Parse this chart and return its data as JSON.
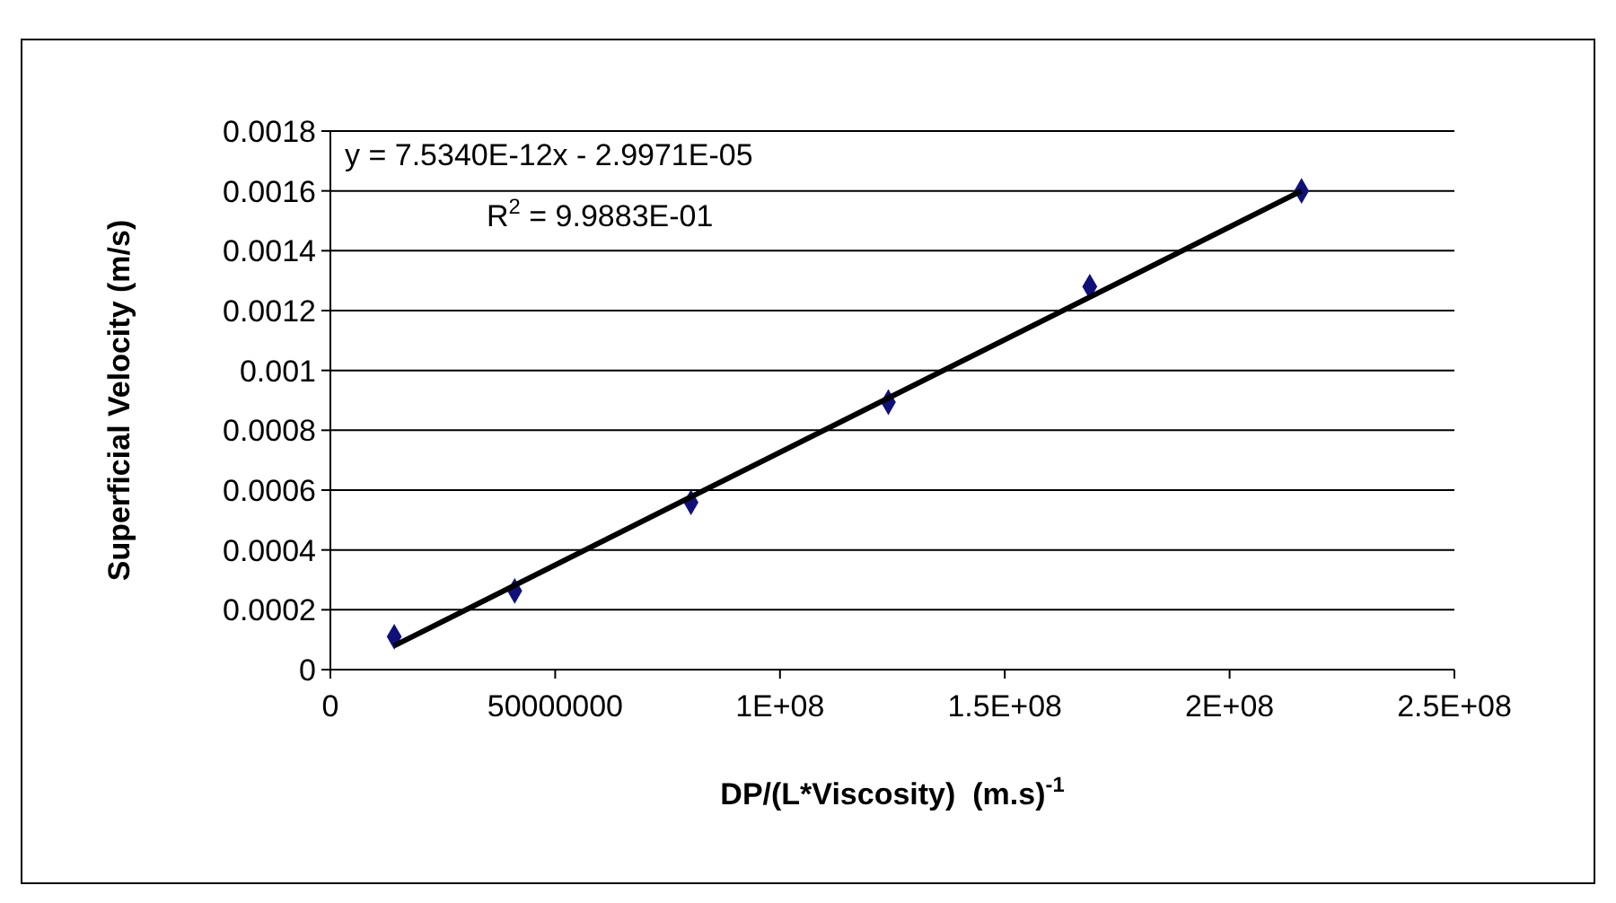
{
  "chart_data": {
    "type": "scatter",
    "xlabel": "DP/(L*Viscosity)  (m.s)$^{-1}$",
    "ylabel": "Superficial Velocity (m/s)",
    "x": [
      14200000,
      41000000,
      80200000,
      124100000,
      168900000,
      216000000
    ],
    "series": [
      {
        "color": "#10107a",
        "marker": "diamond",
        "values": [
          0.00011,
          0.000263,
          0.000559,
          0.000894,
          0.00128,
          0.0016
        ]
      },
      {
        "type": "line",
        "color": "#000000",
        "marker": "none",
        "line_style": "solid",
        "x": [
          14200000,
          216000000
        ],
        "values": [
          8e-05,
          0.0016
        ]
      }
    ],
    "xlim": [
      0,
      250000000
    ],
    "xticks": [
      0,
      50000000,
      {
        "value": 100000000,
        "label": "1E+08"
      },
      {
        "value": 150000000,
        "label": "1.5E+08"
      },
      {
        "value": 200000000,
        "label": "2E+08"
      },
      {
        "value": 250000000,
        "label": "2.5E+08"
      }
    ],
    "ylim": [
      0,
      0.0018
    ],
    "yticks": [
      0,
      0.0002,
      0.0004,
      0.0006,
      0.0008,
      0.001,
      0.0012,
      0.0014,
      0.0016,
      0.0018
    ],
    "grid": "y",
    "annotations": [
      "y = 7.5340E-12x - 2.9971E-05",
      "R$^{2}$ = 9.9883E-01"
    ]
  }
}
